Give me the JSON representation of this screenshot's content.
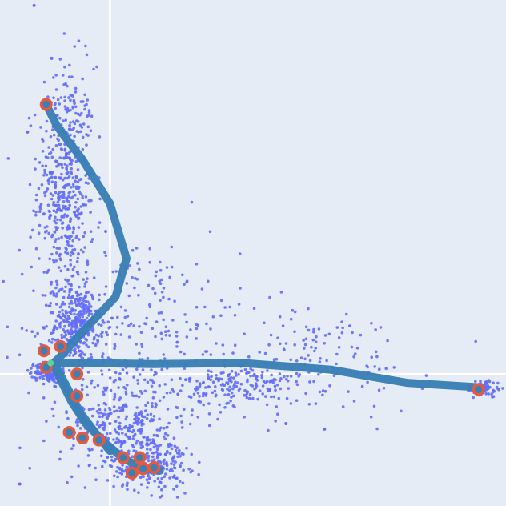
{
  "chart_data": {
    "type": "scatter",
    "title": "",
    "xlabel": "",
    "ylabel": "",
    "xlim": [
      -1.0,
      3.6
    ],
    "ylim": [
      -1.2,
      3.4
    ],
    "grid": true,
    "zero_lines": true,
    "legend": "none",
    "colors": {
      "background": "#E5ECF6",
      "grid": "#FFFFFF",
      "points": "#636EFA",
      "trajectory": "#3A7FB5",
      "milestone": "#E35A3E",
      "root": "#5FD0A0"
    },
    "series": [
      {
        "kind": "cells",
        "clusters": [
          {
            "center": [
              -0.4,
              1.7
            ],
            "spread": [
              0.13,
              0.55
            ],
            "count": 520
          },
          {
            "center": [
              -0.3,
              0.45
            ],
            "spread": [
              0.1,
              0.17
            ],
            "count": 320
          },
          {
            "center": [
              -0.56,
              0.02
            ],
            "spread": [
              0.06,
              0.05
            ],
            "count": 160
          },
          {
            "center": [
              0.2,
              0.4
            ],
            "spread": [
              0.5,
              0.45
            ],
            "count": 300
          },
          {
            "center": [
              0.1,
              -0.45
            ],
            "spread": [
              0.28,
              0.22
            ],
            "count": 320
          },
          {
            "center": [
              0.35,
              -0.8
            ],
            "spread": [
              0.18,
              0.13
            ],
            "count": 240
          },
          {
            "center": [
              1.2,
              -0.1
            ],
            "spread": [
              0.25,
              0.1
            ],
            "count": 180
          },
          {
            "center": [
              1.8,
              0.15
            ],
            "spread": [
              0.55,
              0.25
            ],
            "count": 150
          },
          {
            "center": [
              3.4,
              -0.13
            ],
            "spread": [
              0.08,
              0.04
            ],
            "count": 70
          }
        ],
        "outliers": [
          {
            "x": -0.69,
            "y": 3.35
          },
          {
            "x": -0.53,
            "y": 2.87
          },
          {
            "x": -0.75,
            "y": 2.2
          },
          {
            "x": -0.82,
            "y": -1.0
          },
          {
            "x": 0.0,
            "y": -0.45
          },
          {
            "x": 1.6,
            "y": -0.45
          },
          {
            "x": 1.95,
            "y": -0.5
          },
          {
            "x": 2.35,
            "y": 0.0
          }
        ]
      },
      {
        "kind": "trajectory",
        "branches": [
          {
            "name": "",
            "x": [
              -0.51,
              -0.43,
              -0.28,
              0.05,
              0.15,
              0.0,
              -0.25,
              -0.48,
              -0.58
            ],
            "y": [
              0.1,
              0.18,
              0.35,
              0.7,
              1.05,
              1.55,
              1.95,
              2.25,
              2.45
            ]
          },
          {
            "name": "",
            "x": [
              -0.51,
              -0.2,
              0.4,
              1.2,
              2.0,
              2.7,
              3.35
            ],
            "y": [
              0.1,
              0.1,
              0.09,
              0.1,
              0.04,
              -0.08,
              -0.12
            ]
          },
          {
            "name": "",
            "x": [
              -0.51,
              -0.45,
              -0.35,
              -0.22,
              -0.05,
              0.1,
              0.22,
              0.3,
              0.45
            ],
            "y": [
              0.1,
              -0.05,
              -0.25,
              -0.45,
              -0.62,
              -0.75,
              -0.82,
              -0.86,
              -0.88
            ]
          },
          {
            "name": "",
            "x": [
              -0.51,
              -0.4,
              -0.27,
              -0.12,
              0.0
            ],
            "y": [
              0.1,
              -0.1,
              -0.35,
              -0.55,
              -0.7
            ]
          }
        ],
        "milestones": [
          {
            "x": -0.58,
            "y": 2.45
          },
          {
            "x": -0.6,
            "y": 0.21
          },
          {
            "x": -0.45,
            "y": 0.25
          },
          {
            "x": -0.58,
            "y": 0.06
          },
          {
            "x": -0.3,
            "y": 0.0
          },
          {
            "x": -0.3,
            "y": -0.2
          },
          {
            "x": -0.37,
            "y": -0.53
          },
          {
            "x": -0.25,
            "y": -0.58
          },
          {
            "x": -0.1,
            "y": -0.6
          },
          {
            "x": 0.12,
            "y": -0.76
          },
          {
            "x": 0.27,
            "y": -0.76
          },
          {
            "x": 0.3,
            "y": -0.86
          },
          {
            "x": 0.4,
            "y": -0.85
          },
          {
            "x": 0.2,
            "y": -0.9
          },
          {
            "x": 3.35,
            "y": -0.14
          }
        ],
        "root": {
          "x": -0.54,
          "y": 0.1
        }
      }
    ]
  }
}
